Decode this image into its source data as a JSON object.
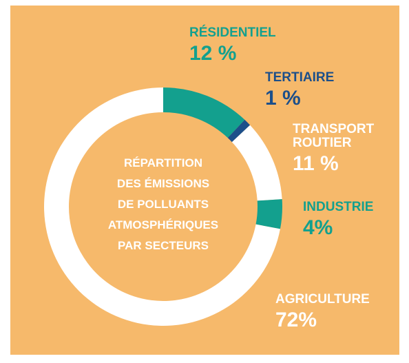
{
  "chart_data": {
    "type": "donut",
    "title": [
      "RÉPARTITION",
      "DES ÉMISSIONS",
      "DE POLLUANTS",
      "ATMOSPHÉRIQUES",
      "PAR SECTEURS"
    ],
    "categories": [
      "RÉSIDENTIEL",
      "TERTIAIRE",
      "TRANSPORT ROUTIER",
      "INDUSTRIE",
      "AGRICULTURE"
    ],
    "values": [
      12,
      1,
      11,
      4,
      72
    ],
    "value_labels": [
      "12 %",
      "1 %",
      "11 %",
      "4%",
      "72%"
    ],
    "colors": [
      "#13a08e",
      "#1c4f8a",
      "#ffffff",
      "#13a08e",
      "#ffffff"
    ]
  }
}
